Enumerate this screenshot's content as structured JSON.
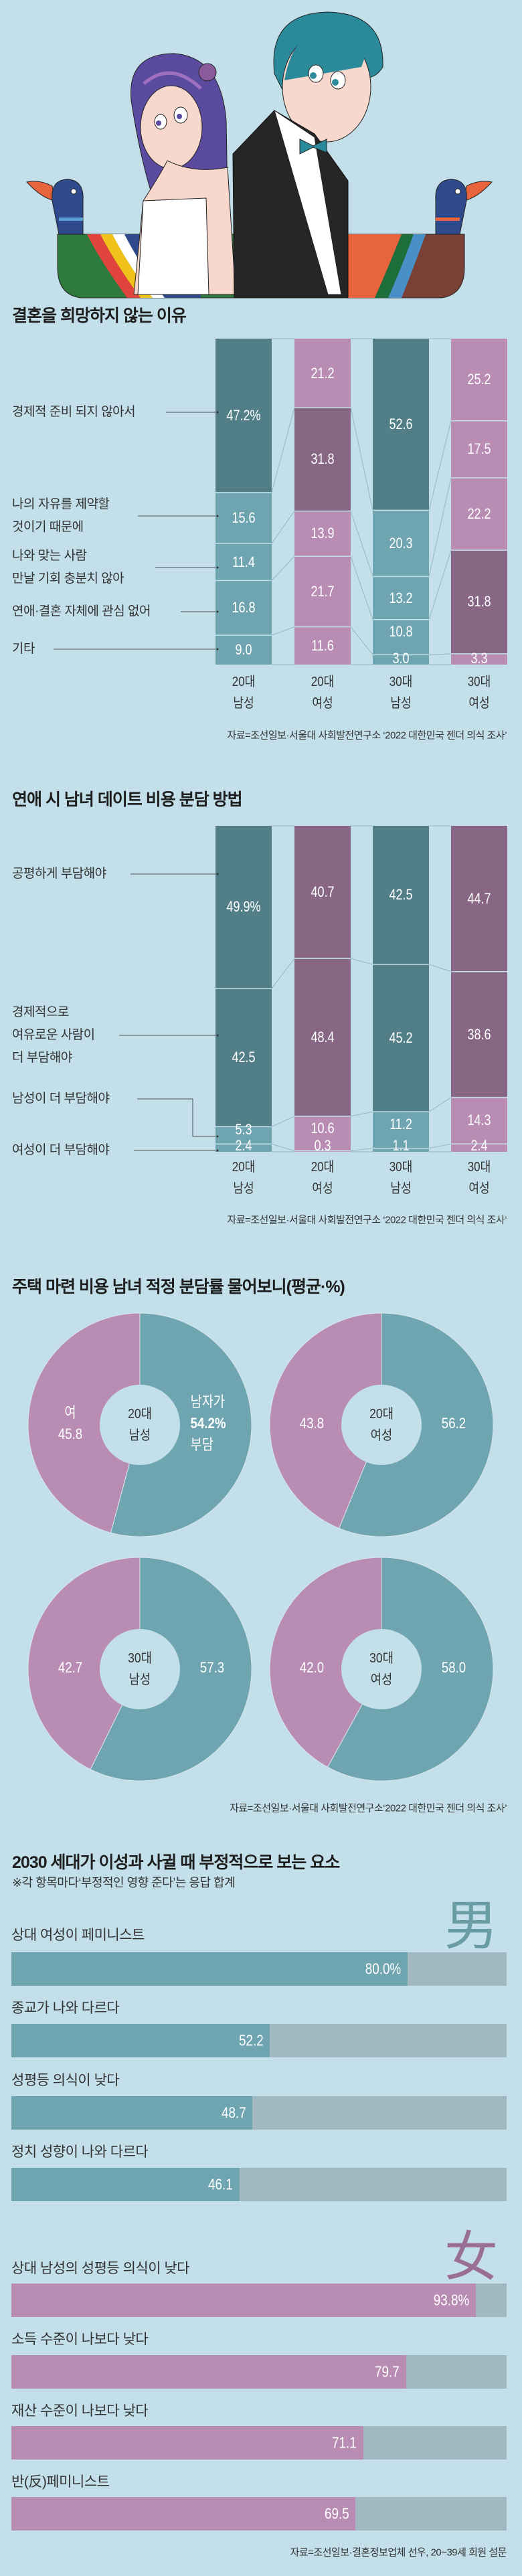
{
  "colors": {
    "bg": "#c3e0ea",
    "teal_dark": "#527f87",
    "teal": "#6fa5b0",
    "purple_dark": "#876783",
    "pink": "#b98db3",
    "track": "#a2b8c1",
    "connector": "#94b6c0"
  },
  "chart_data": [
    {
      "type": "bar",
      "stacked": true,
      "title": "결혼을 희망하지 않는 이유",
      "categories": [
        "경제적 준비 되지 않아서",
        "나의 자유를 제약할 것이기 때문에",
        "나와 맞는 사람 만날 기회 충분치 않아",
        "연애·결혼 자체에 관심 없어",
        "기타"
      ],
      "category_lines": [
        [
          "경제적 준비 되지 않아서"
        ],
        [
          "나의 자유를 제약할",
          "것이기 때문에"
        ],
        [
          "나와 맞는 사람",
          "만날 기회 충분치 않아"
        ],
        [
          "연애·결혼 자체에 관심 없어"
        ],
        [
          "기타"
        ]
      ],
      "columns": [
        {
          "label": [
            "20대",
            "남성"
          ],
          "group": "male",
          "values": [
            47.2,
            15.6,
            11.4,
            16.8,
            9.0
          ],
          "labels": [
            "47.2%",
            "15.6",
            "11.4",
            "16.8",
            "9.0"
          ]
        },
        {
          "label": [
            "20대",
            "여성"
          ],
          "group": "female",
          "values": [
            21.2,
            31.8,
            13.9,
            21.7,
            11.6
          ],
          "labels": [
            "21.2",
            "31.8",
            "13.9",
            "21.7",
            "11.6"
          ]
        },
        {
          "label": [
            "30대",
            "남성"
          ],
          "group": "male",
          "values": [
            52.6,
            20.3,
            13.2,
            10.8,
            3.0
          ],
          "labels": [
            "52.6",
            "20.3",
            "13.2",
            "10.8",
            "3.0"
          ]
        },
        {
          "label": [
            "30대",
            "여성"
          ],
          "group": "female",
          "values": [
            25.2,
            17.5,
            22.2,
            31.8,
            3.3
          ],
          "labels": [
            "25.2",
            "17.5",
            "22.2",
            "31.8",
            "3.3"
          ]
        }
      ],
      "unit": "%",
      "ylim": [
        0,
        100
      ],
      "source": "자료=조선일보·서울대 사회발전연구소 ‘2022 대한민국 젠더 의식 조사’"
    },
    {
      "type": "bar",
      "stacked": true,
      "title": "연애 시 남녀 데이트 비용 분담 방법",
      "categories": [
        "공평하게 부담해야",
        "경제적으로 여유로운 사람이 더 부담해야",
        "남성이 더 부담해야",
        "여성이 더 부담해야"
      ],
      "category_lines": [
        [
          "공평하게 부담해야"
        ],
        [
          "경제적으로",
          "여유로운 사람이",
          "더 부담해야"
        ],
        [
          "남성이 더 부담해야"
        ],
        [
          "여성이 더 부담해야"
        ]
      ],
      "columns": [
        {
          "label": [
            "20대",
            "남성"
          ],
          "group": "male",
          "values": [
            49.9,
            42.5,
            5.3,
            2.4
          ],
          "labels": [
            "49.9%",
            "42.5",
            "5.3",
            "2.4"
          ]
        },
        {
          "label": [
            "20대",
            "여성"
          ],
          "group": "female",
          "values": [
            40.7,
            48.4,
            10.6,
            0.3
          ],
          "labels": [
            "40.7",
            "48.4",
            "10.6",
            "0.3"
          ]
        },
        {
          "label": [
            "30대",
            "남성"
          ],
          "group": "male",
          "values": [
            42.5,
            45.2,
            11.2,
            1.1
          ],
          "labels": [
            "42.5",
            "45.2",
            "11.2",
            "1.1"
          ]
        },
        {
          "label": [
            "30대",
            "여성"
          ],
          "group": "female",
          "values": [
            44.7,
            38.6,
            14.3,
            2.4
          ],
          "labels": [
            "44.7",
            "38.6",
            "14.3",
            "2.4"
          ]
        }
      ],
      "unit": "%",
      "ylim": [
        0,
        100
      ],
      "source": "자료=조선일보·서울대 사회발전연구소 ‘2022 대한민국 젠더 의식 조사’"
    },
    {
      "type": "pie",
      "donut": true,
      "title": "주택 마련 비용 남녀 적정 분담률 물어보니(평균·%)",
      "series_names": [
        "여",
        "남"
      ],
      "pies": [
        {
          "center": [
            "20대",
            "남성"
          ],
          "female": 45.8,
          "male": 54.2,
          "female_text": [
            "여",
            "45.8"
          ],
          "male_text": [
            "남자가",
            "54.2%",
            "부담"
          ]
        },
        {
          "center": [
            "20대",
            "여성"
          ],
          "female": 43.8,
          "male": 56.2,
          "female_text": [
            "43.8"
          ],
          "male_text": [
            "56.2"
          ]
        },
        {
          "center": [
            "30대",
            "남성"
          ],
          "female": 42.7,
          "male": 57.3,
          "female_text": [
            "42.7"
          ],
          "male_text": [
            "57.3"
          ]
        },
        {
          "center": [
            "30대",
            "여성"
          ],
          "female": 42.0,
          "male": 58.0,
          "female_text": [
            "42.0"
          ],
          "male_text": [
            "58.0"
          ]
        }
      ],
      "source": "자료=조선일보·서울대 사회발전연구소‘2022 대한민국 젠더 의식 조사’"
    },
    {
      "type": "bar",
      "orientation": "horizontal",
      "title": "2030 세대가 이성과 사귈 때 부정적으로 보는 요소",
      "subtitle": "※각 항목마다‘부정적인 영향 준다’는 응답 합계",
      "xlim": [
        0,
        100
      ],
      "groups": [
        {
          "symbol": "男",
          "name": "male",
          "items": [
            {
              "label": "상대 여성이 페미니스트",
              "value": 80.0,
              "text": "80.0%"
            },
            {
              "label": "종교가 나와 다르다",
              "value": 52.2,
              "text": "52.2"
            },
            {
              "label": "성평등 의식이 낮다",
              "value": 48.7,
              "text": "48.7"
            },
            {
              "label": "정치 성향이 나와 다르다",
              "value": 46.1,
              "text": "46.1"
            }
          ]
        },
        {
          "symbol": "女",
          "name": "female",
          "items": [
            {
              "label": "상대 남성의 성평등 의식이 낮다",
              "value": 93.8,
              "text": "93.8%"
            },
            {
              "label": "소득 수준이 나보다 낮다",
              "value": 79.7,
              "text": "79.7"
            },
            {
              "label": "재산 수준이 나보다 낮다",
              "value": 71.1,
              "text": "71.1"
            },
            {
              "label": "반(反)페미니스트",
              "value": 69.5,
              "text": "69.5"
            }
          ]
        }
      ],
      "source": "자료=조선일보·결혼정보업체 선우, 20~39세 회원 설문"
    }
  ]
}
